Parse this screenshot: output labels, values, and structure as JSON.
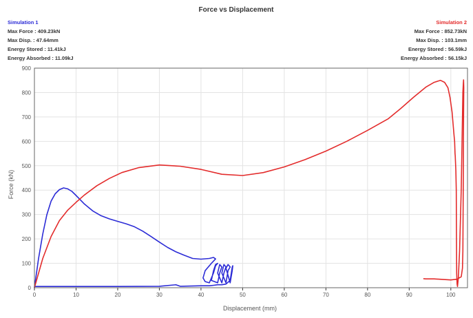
{
  "chart_data": {
    "type": "line",
    "title": "Force vs Displacement",
    "xlabel": "Displacement (mm)",
    "ylabel": "Force (kN)",
    "xlim": [
      0,
      104
    ],
    "ylim": [
      0,
      900
    ],
    "x_ticks": [
      "0",
      "10",
      "20",
      "30",
      "40",
      "50",
      "60",
      "70",
      "80",
      "90",
      "100"
    ],
    "y_ticks": [
      "0",
      "100",
      "200",
      "300",
      "400",
      "500",
      "600",
      "700",
      "800",
      "900"
    ],
    "grid": true,
    "series": [
      {
        "name": "Simulation 1",
        "color": "#2b2bd6",
        "stats": {
          "max_force": "Max Force : 409.23kN",
          "max_disp": "Max Disp. : 47.64mm",
          "energy_stored": "Energy Stored : 11.41kJ",
          "energy_absorbed": "Energy Absorbed : 11.09kJ"
        },
        "x": [
          0,
          1,
          2,
          3,
          4,
          5,
          6,
          7,
          8,
          9,
          10,
          12,
          14,
          16,
          18,
          20,
          22,
          24,
          26,
          28,
          30,
          32,
          34,
          36,
          38,
          40,
          42,
          43,
          43.5,
          42.5,
          41,
          40.5,
          41,
          42,
          43,
          43.5,
          44,
          43.5,
          43,
          42.5,
          44,
          44.5,
          45,
          44.5,
          44,
          45,
          45.5,
          46,
          45.5,
          45,
          46,
          46.5,
          47,
          46.5,
          46,
          47,
          47.5,
          47.64,
          47.5,
          47,
          46,
          45,
          44,
          43,
          42,
          40,
          35,
          34,
          30,
          20,
          10,
          5,
          1,
          0
        ],
        "y": [
          0,
          120,
          220,
          300,
          355,
          385,
          402,
          409,
          405,
          395,
          378,
          343,
          315,
          295,
          282,
          272,
          262,
          250,
          232,
          210,
          187,
          165,
          147,
          133,
          120,
          117,
          120,
          124,
          118,
          100,
          70,
          40,
          25,
          20,
          60,
          90,
          100,
          95,
          70,
          30,
          20,
          60,
          85,
          95,
          60,
          20,
          60,
          85,
          95,
          60,
          20,
          70,
          85,
          95,
          80,
          20,
          70,
          90,
          85,
          30,
          15,
          12,
          12,
          10,
          8,
          8,
          6,
          12,
          6,
          5,
          5,
          5,
          5,
          5
        ]
      },
      {
        "name": "Simulation 2",
        "color": "#e32b2b",
        "stats": {
          "max_force": "Max Force : 852.73kN",
          "max_disp": "Max Disp. : 103.1mm",
          "energy_stored": "Energy Stored : 56.59kJ",
          "energy_absorbed": "Energy Absorbed : 56.15kJ"
        },
        "x": [
          0,
          2,
          4,
          6,
          8,
          10,
          12,
          15,
          18,
          21,
          25,
          30,
          35,
          40,
          45,
          50,
          55,
          60,
          65,
          70,
          75,
          80,
          85,
          88,
          91,
          94,
          96,
          97.5,
          98.5,
          99.3,
          99.8,
          100.3,
          100.6,
          100.7,
          100.8,
          100.9,
          101.0,
          101.05,
          101.2,
          101.3,
          101.35,
          101.4,
          101.5,
          101.6,
          101.8,
          102.1,
          102.5,
          102.8,
          102.9,
          103.0,
          103.05,
          103.1,
          103.05,
          103.0,
          102.95,
          102.9,
          102.8,
          102.5,
          101.5,
          100,
          98,
          96,
          94,
          93.5
        ],
        "y": [
          0,
          120,
          210,
          275,
          318,
          350,
          380,
          418,
          448,
          472,
          492,
          503,
          498,
          485,
          465,
          460,
          472,
          495,
          525,
          560,
          600,
          645,
          693,
          735,
          780,
          822,
          842,
          850,
          842,
          820,
          780,
          720,
          660,
          640,
          620,
          600,
          550,
          540,
          480,
          400,
          200,
          60,
          15,
          5,
          40,
          150,
          400,
          700,
          800,
          840,
          852,
          820,
          700,
          500,
          300,
          150,
          80,
          45,
          35,
          32,
          34,
          36,
          36,
          37
        ]
      }
    ]
  }
}
